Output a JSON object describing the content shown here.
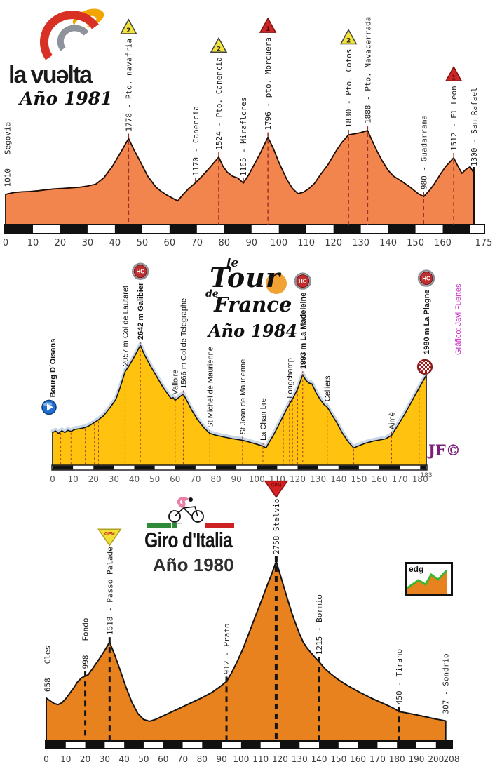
{
  "sections": {
    "vuelta": {
      "brand": "la vuǝlta",
      "year": "Año 1981"
    },
    "tour": {
      "brand_le": "le",
      "brand_tour": "Tour",
      "brand_de": "de",
      "brand_france": "France",
      "year": "Año 1984",
      "credit": "Gráfico: Javi Fuertes",
      "signature": "JF©"
    },
    "giro": {
      "brand": "Giro d'Italia",
      "year": "Año 1980",
      "watermark": "edg"
    }
  },
  "badges": {
    "cat1": "1",
    "cat2": "2",
    "hc": "HC",
    "gpm": "GPM"
  },
  "chart_data": [
    {
      "id": "vuelta1981",
      "type": "area",
      "title": "La Vuelta Año 1981",
      "x_unit": "km",
      "x_domain": [
        0,
        175
      ],
      "elev_domain": [
        595,
        2000
      ],
      "x_ticks": [
        0,
        10,
        20,
        30,
        40,
        50,
        60,
        70,
        80,
        90,
        100,
        110,
        120,
        130,
        140,
        150,
        160,
        175
      ],
      "colors": {
        "fill": "#F2854E",
        "outline": "#1d0c02",
        "marker": "#98322a"
      },
      "profile": [
        [
          0,
          1010
        ],
        [
          3,
          1035
        ],
        [
          6,
          1045
        ],
        [
          9,
          1050
        ],
        [
          12,
          1060
        ],
        [
          15,
          1075
        ],
        [
          18,
          1085
        ],
        [
          21,
          1092
        ],
        [
          24,
          1100
        ],
        [
          27,
          1108
        ],
        [
          30,
          1125
        ],
        [
          33,
          1150
        ],
        [
          36,
          1240
        ],
        [
          39,
          1390
        ],
        [
          42,
          1580
        ],
        [
          45,
          1778
        ],
        [
          47,
          1620
        ],
        [
          49,
          1480
        ],
        [
          52,
          1260
        ],
        [
          55,
          1110
        ],
        [
          57,
          1050
        ],
        [
          59,
          1000
        ],
        [
          61,
          960
        ],
        [
          63,
          920
        ],
        [
          65,
          1010
        ],
        [
          67,
          1090
        ],
        [
          69.5,
          1170
        ],
        [
          72,
          1265
        ],
        [
          75,
          1390
        ],
        [
          78,
          1524
        ],
        [
          79.5,
          1400
        ],
        [
          81,
          1320
        ],
        [
          83,
          1260
        ],
        [
          85,
          1235
        ],
        [
          87,
          1165
        ],
        [
          89,
          1280
        ],
        [
          91,
          1420
        ],
        [
          93,
          1560
        ],
        [
          96,
          1796
        ],
        [
          98,
          1640
        ],
        [
          100,
          1450
        ],
        [
          103,
          1210
        ],
        [
          105,
          1090
        ],
        [
          107,
          1020
        ],
        [
          109,
          1040
        ],
        [
          111,
          1090
        ],
        [
          113,
          1160
        ],
        [
          115,
          1270
        ],
        [
          118,
          1420
        ],
        [
          121,
          1610
        ],
        [
          123,
          1720
        ],
        [
          125.5,
          1830
        ],
        [
          128,
          1845
        ],
        [
          130,
          1860
        ],
        [
          132.5,
          1888
        ],
        [
          134,
          1760
        ],
        [
          136,
          1600
        ],
        [
          138,
          1460
        ],
        [
          140,
          1340
        ],
        [
          142,
          1260
        ],
        [
          145,
          1190
        ],
        [
          148,
          1110
        ],
        [
          151,
          1020
        ],
        [
          153,
          980
        ],
        [
          155,
          1060
        ],
        [
          157,
          1160
        ],
        [
          159,
          1280
        ],
        [
          161,
          1390
        ],
        [
          164,
          1512
        ],
        [
          165.5,
          1400
        ],
        [
          167,
          1300
        ],
        [
          168.5,
          1355
        ],
        [
          170,
          1390
        ],
        [
          171.4,
          1300
        ]
      ],
      "labels": [
        {
          "text": "1010 - Segovia",
          "km": 0.6,
          "line": "none"
        },
        {
          "text": "1778 - Pto. navafria",
          "km": 45,
          "badge": "cat2",
          "line": "base"
        },
        {
          "text": "1170 - Canencia",
          "km": 69.5,
          "line": "surface"
        },
        {
          "text": "1524 - Pto. Canencia",
          "km": 78,
          "badge": "cat2",
          "line": "base"
        },
        {
          "text": "1165 - Miraflores",
          "km": 87,
          "line": "surface"
        },
        {
          "text": "1796 - pto. Morcuera",
          "km": 96,
          "badge": "cat1",
          "line": "base"
        },
        {
          "text": "1830 - Pto. Cotos",
          "km": 125.5,
          "badge": "cat2",
          "line": "base"
        },
        {
          "text": "1888 - Pto. Navacerrada",
          "km": 132.5,
          "line": "base"
        },
        {
          "text": "980 - Guadarrama",
          "km": 153,
          "line": "base"
        },
        {
          "text": "1512 - El Leon",
          "km": 164,
          "badge": "cat1",
          "line": "base"
        },
        {
          "text": "1300 - San Rafael",
          "km": 171.4,
          "line": "pole"
        }
      ],
      "marker_lines": []
    },
    {
      "id": "tour1984",
      "type": "area",
      "title": "Le Tour de France Año 1984",
      "x_unit": "km",
      "x_domain": [
        0,
        183
      ],
      "elev_domain": [
        0,
        2700
      ],
      "x_ticks": [
        0,
        10,
        20,
        30,
        40,
        50,
        60,
        70,
        80,
        90,
        100,
        110,
        120,
        130,
        140,
        150,
        160,
        170,
        180,
        {
          "v": 183,
          "small": true
        }
      ],
      "colors": {
        "fill": "#FFC20E",
        "outline": "#131313",
        "halo": "#C9D8E8",
        "marker": "#a03828"
      },
      "profile": [
        [
          0,
          720
        ],
        [
          1.5,
          755
        ],
        [
          3,
          700
        ],
        [
          4.5,
          760
        ],
        [
          6,
          720
        ],
        [
          7.5,
          770
        ],
        [
          9,
          745
        ],
        [
          11,
          790
        ],
        [
          13,
          800
        ],
        [
          16,
          830
        ],
        [
          18,
          870
        ],
        [
          20.5,
          940
        ],
        [
          22.5,
          1000
        ],
        [
          25,
          1090
        ],
        [
          28,
          1260
        ],
        [
          31,
          1450
        ],
        [
          33,
          1700
        ],
        [
          35.5,
          2057
        ],
        [
          38,
          2230
        ],
        [
          40.5,
          2430
        ],
        [
          43,
          2642
        ],
        [
          45,
          2430
        ],
        [
          48,
          2180
        ],
        [
          51,
          1950
        ],
        [
          54,
          1720
        ],
        [
          56.5,
          1560
        ],
        [
          58,
          1470
        ],
        [
          59,
          1490
        ],
        [
          60,
          1430
        ],
        [
          62,
          1500
        ],
        [
          64,
          1566
        ],
        [
          66,
          1400
        ],
        [
          68,
          1220
        ],
        [
          71,
          1000
        ],
        [
          74,
          830
        ],
        [
          77,
          700
        ],
        [
          80,
          660
        ],
        [
          84,
          620
        ],
        [
          88,
          585
        ],
        [
          93,
          550
        ],
        [
          97,
          500
        ],
        [
          100,
          460
        ],
        [
          103,
          420
        ],
        [
          104.5,
          380
        ],
        [
          106,
          500
        ],
        [
          108,
          650
        ],
        [
          110,
          820
        ],
        [
          112,
          1000
        ],
        [
          114,
          1180
        ],
        [
          116,
          1350
        ],
        [
          118,
          1500
        ],
        [
          120,
          1680
        ],
        [
          122.5,
          1993
        ],
        [
          124,
          1870
        ],
        [
          125.5,
          1810
        ],
        [
          127,
          1790
        ],
        [
          129,
          1600
        ],
        [
          131,
          1450
        ],
        [
          133,
          1330
        ],
        [
          134.5,
          1280
        ],
        [
          136.5,
          1130
        ],
        [
          139,
          950
        ],
        [
          142,
          700
        ],
        [
          145,
          500
        ],
        [
          147.5,
          380
        ],
        [
          150,
          430
        ],
        [
          153,
          480
        ],
        [
          157,
          530
        ],
        [
          160,
          555
        ],
        [
          163,
          580
        ],
        [
          166,
          660
        ],
        [
          169,
          870
        ],
        [
          172,
          1090
        ],
        [
          175,
          1330
        ],
        [
          178,
          1580
        ],
        [
          180.5,
          1780
        ],
        [
          183,
          1980
        ]
      ],
      "labels": [
        {
          "text": "Bourg D´Oisans",
          "km": 0,
          "bold": true,
          "badge": "start",
          "line": "none"
        },
        {
          "text": "2057 m Col de Lautaret",
          "km": 35.5,
          "line": "base"
        },
        {
          "text": "2642 m Galibier",
          "km": 43,
          "bold": true,
          "badge": "hc",
          "line": "base"
        },
        {
          "text": "Valloire",
          "km": 60,
          "line": "base"
        },
        {
          "text": "1566 m Col de Telegraphe",
          "km": 64,
          "line": "base"
        },
        {
          "text": "St Michel de Maurienne",
          "km": 77,
          "line": "base"
        },
        {
          "text": "St Jean de Maurienne",
          "km": 93,
          "line": "base"
        },
        {
          "text": "La Chambre",
          "km": 103,
          "line": "base"
        },
        {
          "text": "Longchamp",
          "km": 116,
          "line": "base"
        },
        {
          "text": "1993 m La Madeleine",
          "km": 122.5,
          "bold": true,
          "badge": "hc",
          "line": "base"
        },
        {
          "text": "Celliers",
          "km": 134.5,
          "line": "base"
        },
        {
          "text": "Aimè",
          "km": 166,
          "line": "base"
        },
        {
          "text": "1980 m La Plagne",
          "km": 183,
          "bold": true,
          "badge": "hc",
          "finish": true,
          "line": "none"
        }
      ],
      "marker_lines": [
        4,
        6,
        9,
        16,
        20.5,
        22.5,
        113,
        117.5,
        120,
        147.5,
        179.5
      ]
    },
    {
      "id": "giro1980",
      "type": "area",
      "title": "Giro d'Italia Año 1980",
      "x_unit": "km",
      "x_domain": [
        0,
        208
      ],
      "elev_domain": [
        0,
        2900
      ],
      "x_ticks": [
        0,
        10,
        20,
        30,
        40,
        50,
        60,
        70,
        80,
        90,
        100,
        110,
        120,
        130,
        140,
        150,
        160,
        170,
        180,
        190,
        200,
        208
      ],
      "colors": {
        "fill": "#E8821E",
        "outline": "#131313",
        "marker": "#151515"
      },
      "profile": [
        [
          0,
          658
        ],
        [
          2,
          615
        ],
        [
          4,
          575
        ],
        [
          6,
          558
        ],
        [
          8,
          585
        ],
        [
          10,
          650
        ],
        [
          12,
          730
        ],
        [
          14,
          810
        ],
        [
          16,
          905
        ],
        [
          18,
          965
        ],
        [
          20,
          998
        ],
        [
          21.5,
          1015
        ],
        [
          24,
          1120
        ],
        [
          27,
          1250
        ],
        [
          30,
          1390
        ],
        [
          32.5,
          1518
        ],
        [
          35,
          1330
        ],
        [
          38,
          1080
        ],
        [
          41,
          820
        ],
        [
          44,
          590
        ],
        [
          47,
          420
        ],
        [
          50,
          330
        ],
        [
          53,
          303
        ],
        [
          56,
          330
        ],
        [
          60,
          385
        ],
        [
          65,
          455
        ],
        [
          70,
          525
        ],
        [
          75,
          595
        ],
        [
          80,
          665
        ],
        [
          85,
          745
        ],
        [
          89,
          830
        ],
        [
          92.5,
          912
        ],
        [
          95,
          1040
        ],
        [
          98,
          1220
        ],
        [
          101,
          1420
        ],
        [
          104,
          1650
        ],
        [
          107,
          1890
        ],
        [
          110,
          2120
        ],
        [
          113,
          2360
        ],
        [
          115.5,
          2550
        ],
        [
          118,
          2758
        ],
        [
          120,
          2560
        ],
        [
          122,
          2360
        ],
        [
          124,
          2160
        ],
        [
          126,
          1970
        ],
        [
          128,
          1800
        ],
        [
          130,
          1640
        ],
        [
          132,
          1510
        ],
        [
          134,
          1420
        ],
        [
          136,
          1350
        ],
        [
          138,
          1280
        ],
        [
          140,
          1215
        ],
        [
          143,
          1110
        ],
        [
          146,
          1030
        ],
        [
          149,
          960
        ],
        [
          152,
          900
        ],
        [
          155,
          845
        ],
        [
          158,
          795
        ],
        [
          161,
          745
        ],
        [
          164,
          700
        ],
        [
          167,
          655
        ],
        [
          170,
          615
        ],
        [
          173,
          575
        ],
        [
          176,
          535
        ],
        [
          179,
          490
        ],
        [
          181,
          450
        ],
        [
          184,
          435
        ],
        [
          187,
          418
        ],
        [
          190,
          400
        ],
        [
          193,
          382
        ],
        [
          196,
          362
        ],
        [
          199,
          342
        ],
        [
          202,
          325
        ],
        [
          205,
          307
        ]
      ],
      "labels": [
        {
          "text": "658 - Cles",
          "km": 0.6,
          "line": "none"
        },
        {
          "text": "998 - Fondo",
          "km": 20,
          "line": "base"
        },
        {
          "text": "1518 - Passo Palade",
          "km": 32.5,
          "badge": "gpm_yellow",
          "line": "base"
        },
        {
          "text": "912 - Prato",
          "km": 92.5,
          "line": "base"
        },
        {
          "text": "2758 Stelvio",
          "km": 118,
          "badge": "gpm_red",
          "heavy": true,
          "line": "base"
        },
        {
          "text": "1215 - Bormio",
          "km": 140,
          "line": "base"
        },
        {
          "text": "450 - Tirano",
          "km": 181,
          "line": "base"
        },
        {
          "text": "307 - Sondrio",
          "km": 205,
          "line": "none"
        }
      ],
      "marker_lines": []
    }
  ]
}
